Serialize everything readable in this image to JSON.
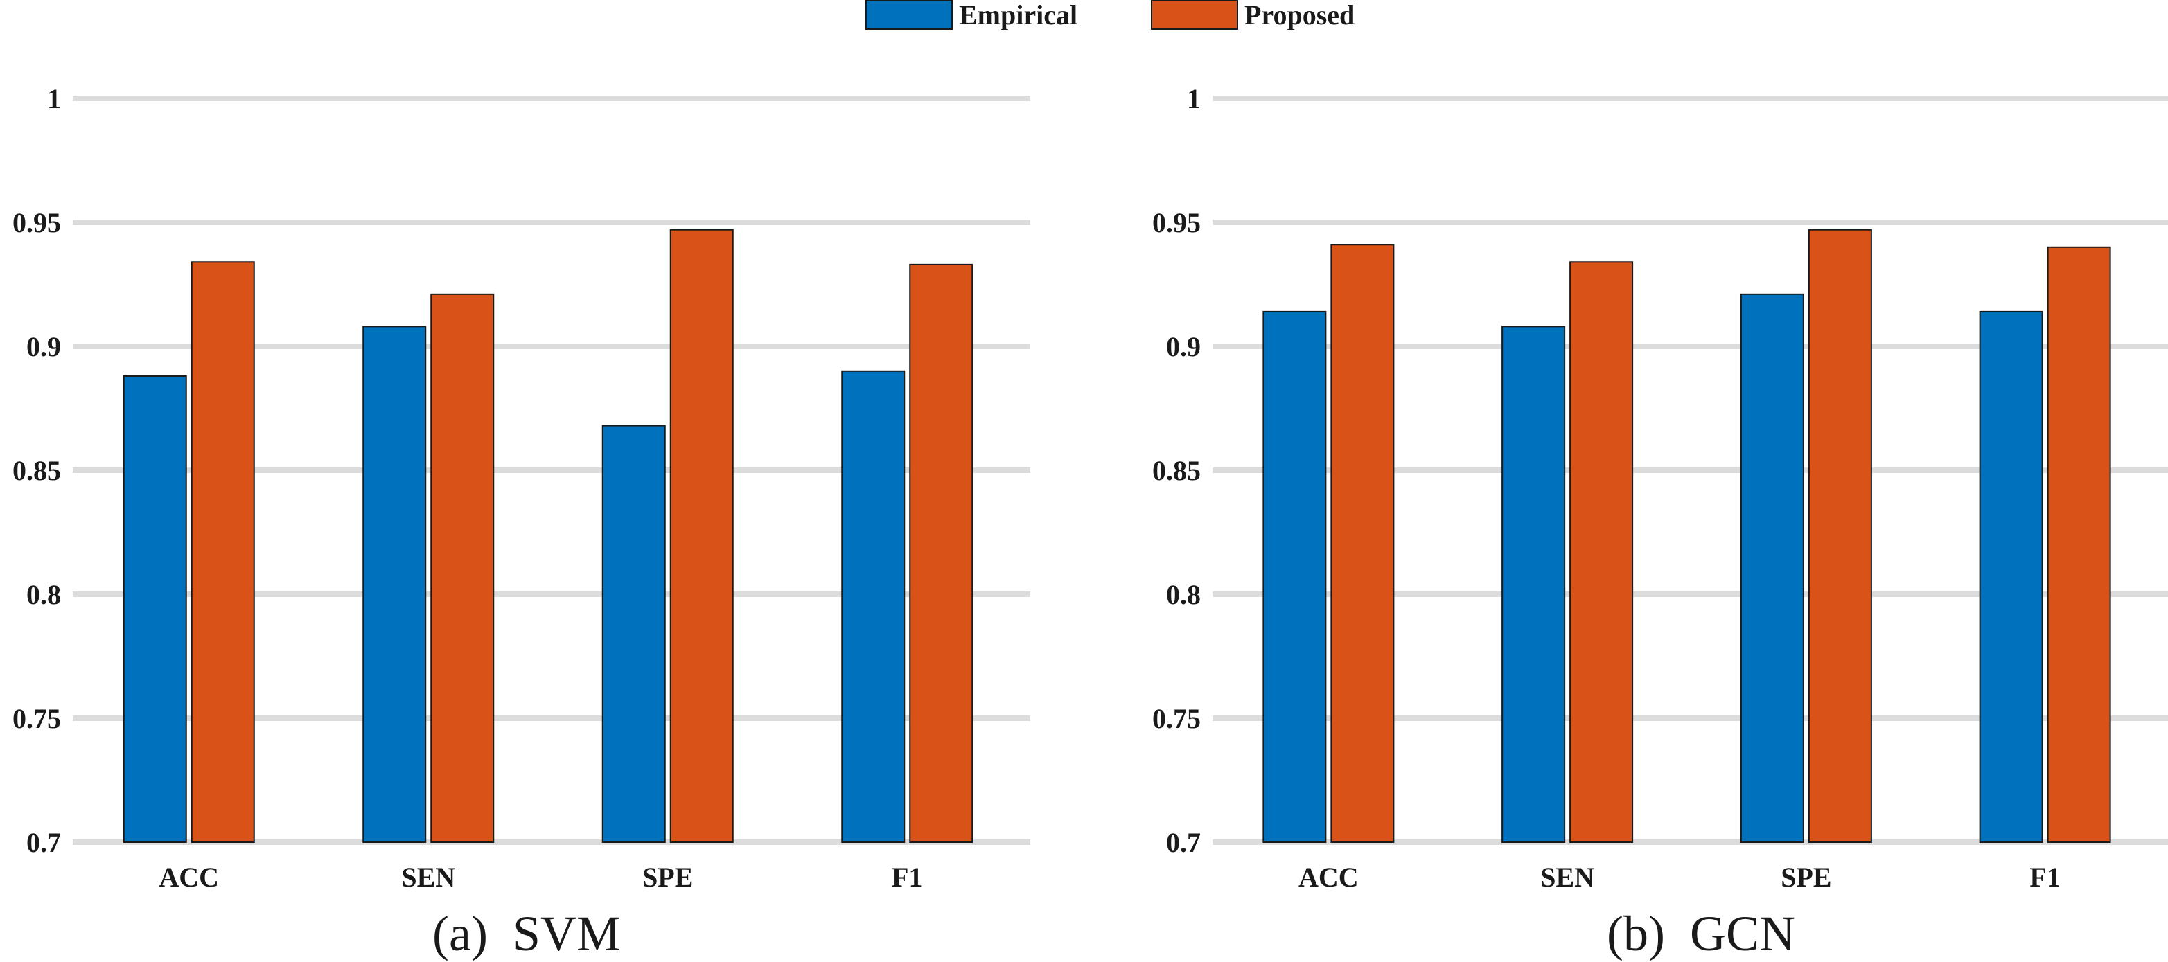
{
  "legend": [
    {
      "name": "Empirical",
      "color": "#0072BD"
    },
    {
      "name": "Proposed",
      "color": "#D95319"
    }
  ],
  "chart_data": [
    {
      "type": "bar",
      "title": "(a)  SVM",
      "xlabel": "",
      "ylabel": "",
      "categories": [
        "ACC",
        "SEN",
        "SPE",
        "F1"
      ],
      "series": [
        {
          "name": "Empirical",
          "values": [
            0.888,
            0.908,
            0.868,
            0.89
          ]
        },
        {
          "name": "Proposed",
          "values": [
            0.934,
            0.921,
            0.947,
            0.933
          ]
        }
      ],
      "ylim": [
        0.7,
        1.0
      ],
      "yticks": [
        "0.7",
        "0.75",
        "0.8",
        "0.85",
        "0.9",
        "0.95",
        "1"
      ],
      "grid": true,
      "legend_position": "top-center"
    },
    {
      "type": "bar",
      "title": "(b)  GCN",
      "xlabel": "",
      "ylabel": "",
      "categories": [
        "ACC",
        "SEN",
        "SPE",
        "F1"
      ],
      "series": [
        {
          "name": "Empirical",
          "values": [
            0.914,
            0.908,
            0.921,
            0.914
          ]
        },
        {
          "name": "Proposed",
          "values": [
            0.941,
            0.934,
            0.947,
            0.94
          ]
        }
      ],
      "ylim": [
        0.7,
        1.0
      ],
      "yticks": [
        "0.7",
        "0.75",
        "0.8",
        "0.85",
        "0.9",
        "0.95",
        "1"
      ],
      "grid": true,
      "legend_position": "top-center"
    }
  ]
}
